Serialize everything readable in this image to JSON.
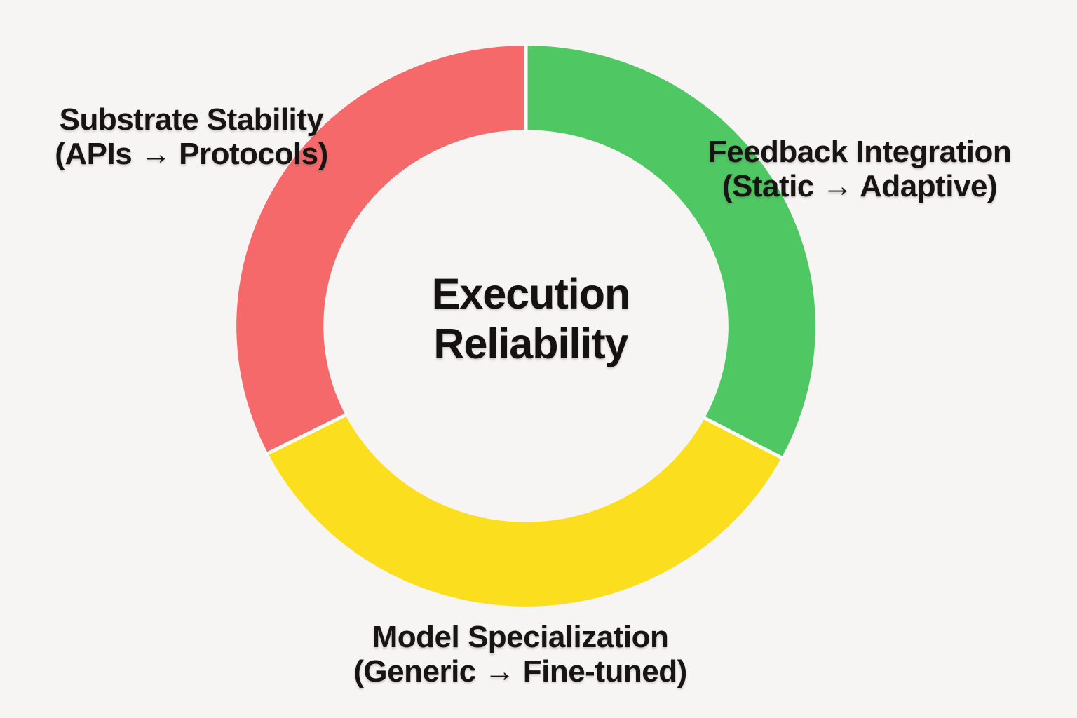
{
  "background_color": "#F7F5F4",
  "chart_data": {
    "type": "pie",
    "variant": "donut",
    "title": "Execution Reliability",
    "legend": "none",
    "labels_position": "outside",
    "segments": [
      {
        "label": "Substrate Stability",
        "sublabel": "(APIs → Protocols)",
        "color": "#F5696B",
        "start_angle_deg": 90,
        "end_angle_deg": 207,
        "sweep_deg": 117,
        "share_pct": 32.5,
        "label_side": "upper-left"
      },
      {
        "label": "Feedback Integration",
        "sublabel": "(Static → Adaptive)",
        "color": "#4FC763",
        "start_angle_deg": -28,
        "end_angle_deg": 90,
        "sweep_deg": 118,
        "share_pct": 32.8,
        "label_side": "right"
      },
      {
        "label": "Model Specialization",
        "sublabel": "(Generic → Fine-tuned)",
        "color": "#FBDE1E",
        "start_angle_deg": 207,
        "end_angle_deg": 332,
        "sweep_deg": 125,
        "share_pct": 34.7,
        "label_side": "bottom"
      }
    ],
    "center_text_color": "#14120f",
    "segment_gap_color": "#FCFBFA"
  }
}
